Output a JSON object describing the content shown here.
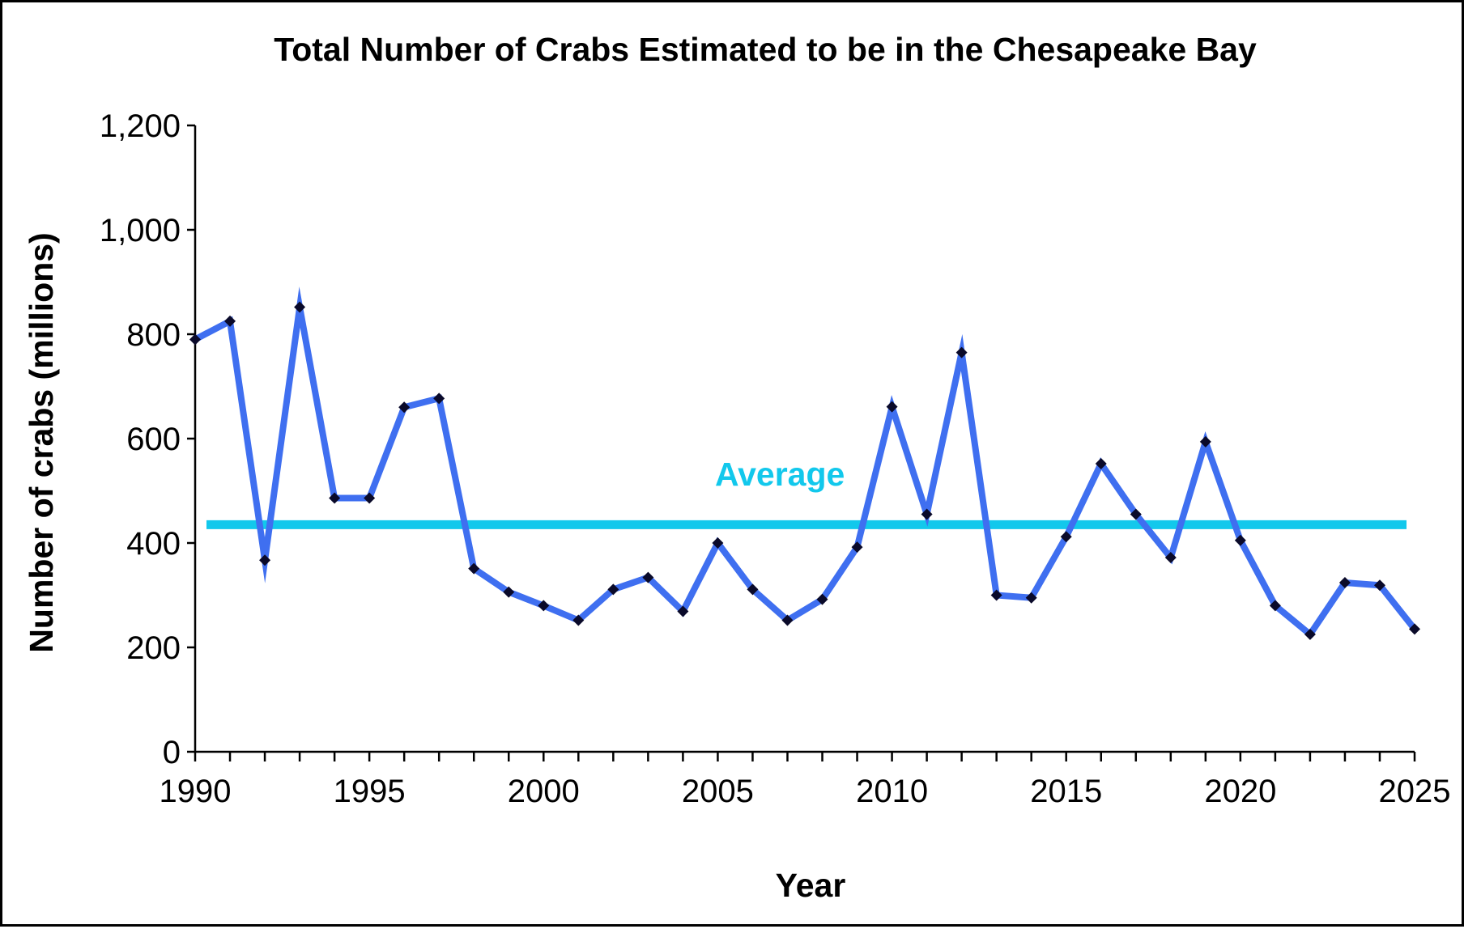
{
  "chart_data": {
    "type": "line",
    "title": "Total Number of Crabs Estimated to be in the Chesapeake Bay",
    "xlabel": "Year",
    "ylabel": "Number of crabs (millions)",
    "xlim": [
      1990,
      2025
    ],
    "ylim": [
      0,
      1200
    ],
    "x_ticks": [
      1990,
      1995,
      2000,
      2005,
      2010,
      2015,
      2020,
      2025
    ],
    "y_ticks": [
      0,
      200,
      400,
      600,
      800,
      1000,
      1200
    ],
    "y_tick_labels": [
      "0",
      "200",
      "400",
      "600",
      "800",
      "1,000",
      "1,200"
    ],
    "grid": false,
    "legend": "none",
    "colors": {
      "line": "#3f6ff0",
      "marker": "#0a0a2a",
      "average": "#12c8ec",
      "axis": "#000000"
    },
    "series": [
      {
        "x": [
          1990,
          1991,
          1992,
          1993,
          1994,
          1995,
          1996,
          1997,
          1998,
          1999,
          2000,
          2001,
          2002,
          2003,
          2004,
          2005,
          2006,
          2007,
          2008,
          2009,
          2010,
          2011,
          2012,
          2013,
          2014,
          2015,
          2016,
          2017,
          2018,
          2019,
          2020,
          2021,
          2022,
          2023,
          2024,
          2025
        ],
        "values": [
          790,
          825,
          367,
          852,
          486,
          486,
          660,
          677,
          351,
          306,
          280,
          252,
          311,
          334,
          269,
          400,
          311,
          252,
          292,
          392,
          661,
          455,
          765,
          300,
          295,
          412,
          552,
          455,
          372,
          594,
          405,
          280,
          225,
          324,
          319,
          235
        ]
      }
    ],
    "average": {
      "label": "Average",
      "value": 435
    }
  }
}
